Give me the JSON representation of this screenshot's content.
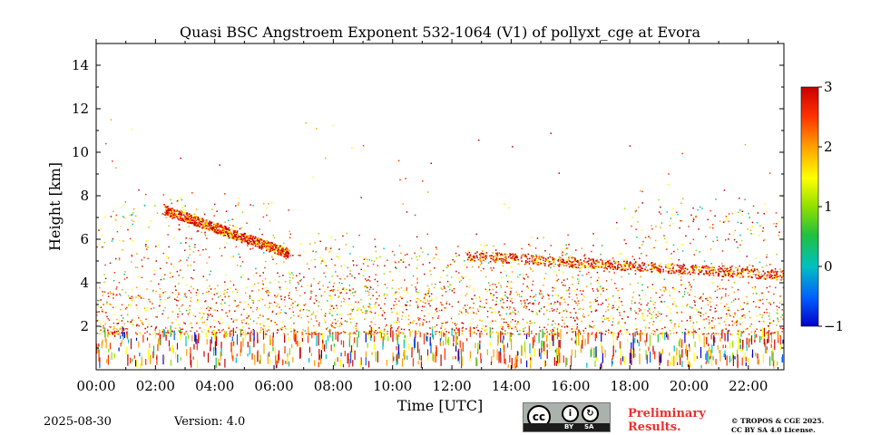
{
  "chart_data": {
    "type": "heatmap",
    "title": "Quasi BSC Angstroem Exponent 532-1064 (V1) of pollyxt_cge at Evora",
    "xlabel": "Time [UTC]",
    "ylabel": "Height [km]",
    "x_ticks": [
      "00:00",
      "02:00",
      "04:00",
      "06:00",
      "08:00",
      "10:00",
      "12:00",
      "14:00",
      "16:00",
      "18:00",
      "20:00",
      "22:00"
    ],
    "y_ticks": [
      "2",
      "4",
      "6",
      "8",
      "10",
      "12",
      "14"
    ],
    "xlim_hours": [
      0,
      23.2
    ],
    "ylim_km": [
      0,
      15
    ],
    "colorbar": {
      "min": -1,
      "max": 3,
      "ticks": [
        "−1",
        "0",
        "1",
        "2",
        "3"
      ],
      "colors": [
        "#0000c8",
        "#0060ff",
        "#00c0c0",
        "#20c040",
        "#90e000",
        "#ffff00",
        "#ffa000",
        "#ff3000",
        "#c80000"
      ]
    },
    "features": [
      {
        "name": "near-surface layer",
        "x_start": 0,
        "x_end": 23.2,
        "y_bottom": 0.1,
        "y_top": 1.6,
        "value": "dense, values -1 to 3"
      },
      {
        "name": "boundary layer aerosol",
        "x_start": 0,
        "x_end": 23.2,
        "y_bottom": 1.6,
        "y_top": 3,
        "value": "~1.5-2.5"
      },
      {
        "name": "descending elevated layer",
        "x_start": 2.3,
        "x_end": 6.5,
        "y_start": 7.3,
        "y_end": 5.3,
        "value": "~1.5-2.5"
      },
      {
        "name": "elevated layer afternoon",
        "x_start": 12.5,
        "x_end": 23.2,
        "y_start": 5.2,
        "y_end": 4.3,
        "value": "~1.5-2.5"
      }
    ]
  },
  "footer": {
    "date": "2025-08-30",
    "version": "Version: 4.0",
    "cc_main": "cc",
    "cc_by": "BY",
    "cc_sa": "SA",
    "preliminary": "Preliminary\nResults.",
    "copyright": "© TROPOS & CGE 2025.\nCC BY SA 4.0 License."
  }
}
